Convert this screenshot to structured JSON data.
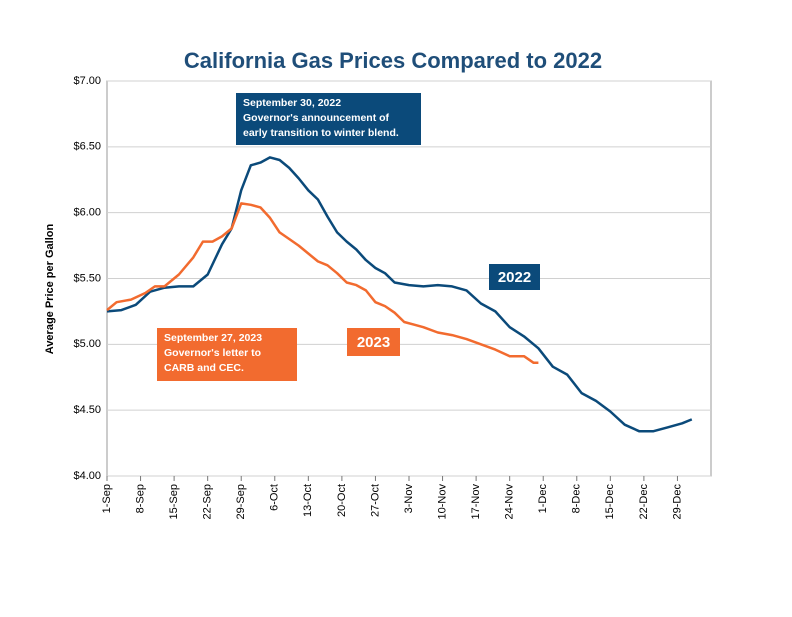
{
  "chart_data": {
    "type": "line",
    "title": "California Gas Prices Compared to 2022",
    "y_label": "Average Price per Gallon",
    "xlim": [
      0,
      126
    ],
    "xticks": [
      {
        "value": 0,
        "label": "1-Sep"
      },
      {
        "value": 7,
        "label": "8-Sep"
      },
      {
        "value": 14,
        "label": "15-Sep"
      },
      {
        "value": 21,
        "label": "22-Sep"
      },
      {
        "value": 28,
        "label": "29-Sep"
      },
      {
        "value": 35,
        "label": "6-Oct"
      },
      {
        "value": 42,
        "label": "13-Oct"
      },
      {
        "value": 49,
        "label": "20-Oct"
      },
      {
        "value": 56,
        "label": "27-Oct"
      },
      {
        "value": 63,
        "label": "3-Nov"
      },
      {
        "value": 70,
        "label": "10-Nov"
      },
      {
        "value": 77,
        "label": "17-Nov"
      },
      {
        "value": 84,
        "label": "24-Nov"
      },
      {
        "value": 91,
        "label": "1-Dec"
      },
      {
        "value": 98,
        "label": "8-Dec"
      },
      {
        "value": 105,
        "label": "15-Dec"
      },
      {
        "value": 112,
        "label": "22-Dec"
      },
      {
        "value": 119,
        "label": "29-Dec"
      }
    ],
    "ylim": [
      4,
      7
    ],
    "yticks": [
      {
        "value": 4,
        "label": "$4.00"
      },
      {
        "value": 4.5,
        "label": "$4.50"
      },
      {
        "value": 5,
        "label": "$5.00"
      },
      {
        "value": 5.5,
        "label": "$5.50"
      },
      {
        "value": 6,
        "label": "$6.00"
      },
      {
        "value": 6.5,
        "label": "$6.50"
      },
      {
        "value": 7,
        "label": "$7.00"
      }
    ],
    "grid": true,
    "series": [
      {
        "name": "2022",
        "color": "#0b4a7a",
        "x": [
          0,
          3,
          6,
          9,
          12,
          15,
          18,
          21,
          24,
          26,
          28,
          30,
          32,
          34,
          36,
          38,
          40,
          42,
          44,
          46,
          48,
          50,
          52,
          54,
          56,
          58,
          60,
          63,
          66,
          69,
          72,
          75,
          78,
          81,
          84,
          87,
          90,
          93,
          96,
          99,
          102,
          105,
          108,
          111,
          114,
          117,
          120,
          122
        ],
        "values": [
          5.25,
          5.26,
          5.3,
          5.4,
          5.43,
          5.44,
          5.44,
          5.53,
          5.76,
          5.88,
          6.17,
          6.36,
          6.38,
          6.42,
          6.4,
          6.34,
          6.26,
          6.17,
          6.1,
          5.97,
          5.85,
          5.78,
          5.72,
          5.64,
          5.58,
          5.54,
          5.47,
          5.45,
          5.44,
          5.45,
          5.44,
          5.41,
          5.31,
          5.25,
          5.13,
          5.06,
          4.97,
          4.83,
          4.77,
          4.63,
          4.57,
          4.49,
          4.39,
          4.34,
          4.34,
          4.37,
          4.4,
          4.43
        ]
      },
      {
        "name": "2023",
        "color": "#f26b2f",
        "x": [
          0,
          2,
          5,
          8,
          10,
          12,
          15,
          18,
          20,
          22,
          24,
          26,
          28,
          30,
          32,
          34,
          36,
          38,
          40,
          42,
          44,
          46,
          48,
          50,
          52,
          54,
          56,
          58,
          60,
          62,
          64,
          66,
          69,
          72,
          75,
          78,
          81,
          84,
          87,
          89,
          90
        ],
        "values": [
          5.26,
          5.32,
          5.34,
          5.39,
          5.44,
          5.44,
          5.53,
          5.66,
          5.78,
          5.78,
          5.82,
          5.88,
          6.07,
          6.06,
          6.04,
          5.96,
          5.85,
          5.8,
          5.75,
          5.69,
          5.63,
          5.6,
          5.54,
          5.47,
          5.45,
          5.41,
          5.32,
          5.29,
          5.24,
          5.17,
          5.15,
          5.13,
          5.09,
          5.07,
          5.04,
          5.0,
          4.96,
          4.91,
          4.91,
          4.86,
          4.86
        ]
      }
    ],
    "annotations": [
      {
        "lines": [
          "September 30, 2022",
          "Governor's announcement of",
          "early transition to winter blend."
        ],
        "color": "#0b4a7a"
      },
      {
        "lines": [
          "September 27, 2023",
          "Governor's letter to",
          "CARB and CEC."
        ],
        "color": "#f26b2f"
      }
    ]
  }
}
